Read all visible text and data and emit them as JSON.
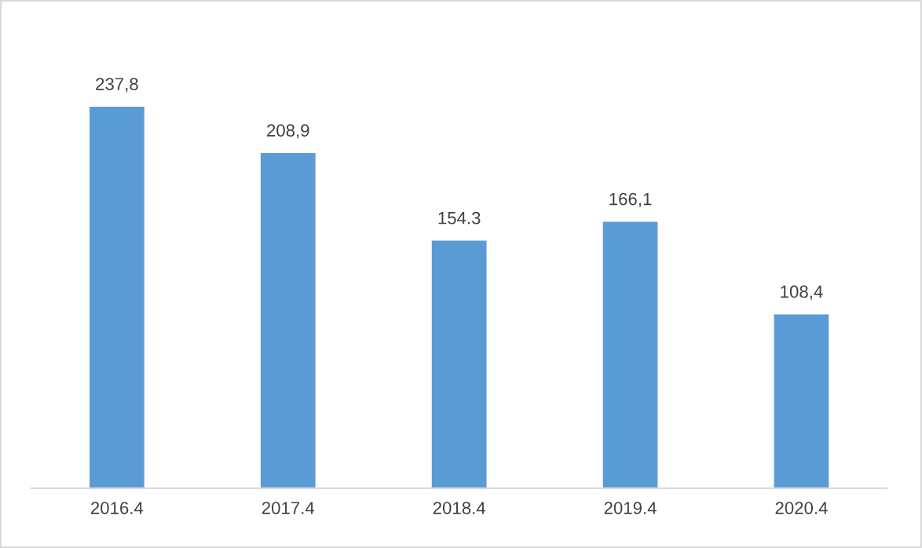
{
  "chart_data": {
    "type": "bar",
    "categories": [
      "2016.4",
      "2017.4",
      "2018.4",
      "2019.4",
      "2020.4"
    ],
    "values": [
      237.8,
      208.9,
      154.3,
      166.1,
      108.4
    ],
    "value_labels": [
      "237,8",
      "208,9",
      "154.3",
      "166,1",
      "108,4"
    ],
    "color": "#5b9bd5",
    "tick_labels": "x",
    "grid": false,
    "legend": false
  }
}
